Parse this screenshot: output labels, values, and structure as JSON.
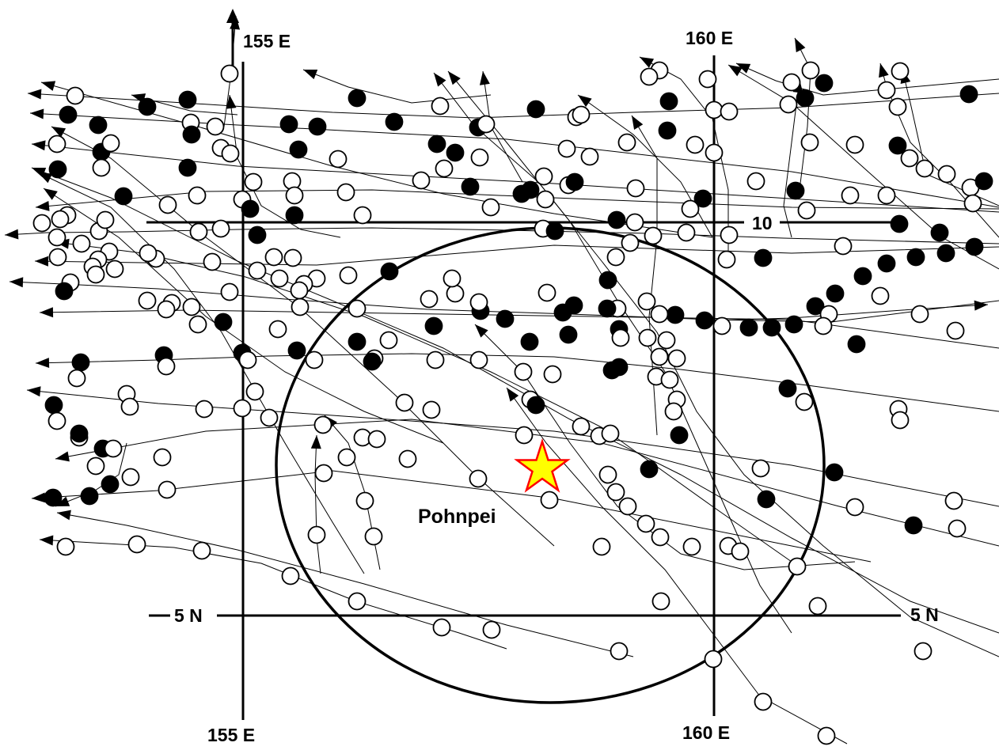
{
  "labels": {
    "lon_155_top": "155 E",
    "lon_160_top": "160 E",
    "lon_155_bottom": "155 E",
    "lon_160_bottom": "160 E",
    "lat_10": "10",
    "lat_5_left": "5 N",
    "lat_5_right": "5 N",
    "place": "Pohnpei"
  },
  "colors": {
    "lines": "#000000",
    "developing_point": "#000000",
    "non_developing_point": "#ffffff",
    "star_fill": "#ffff00",
    "star_stroke": "#ff0000"
  },
  "legend_semantics": {
    "filled_circle": "filled",
    "open_circle": "open",
    "arrow": "direction of motion"
  }
}
